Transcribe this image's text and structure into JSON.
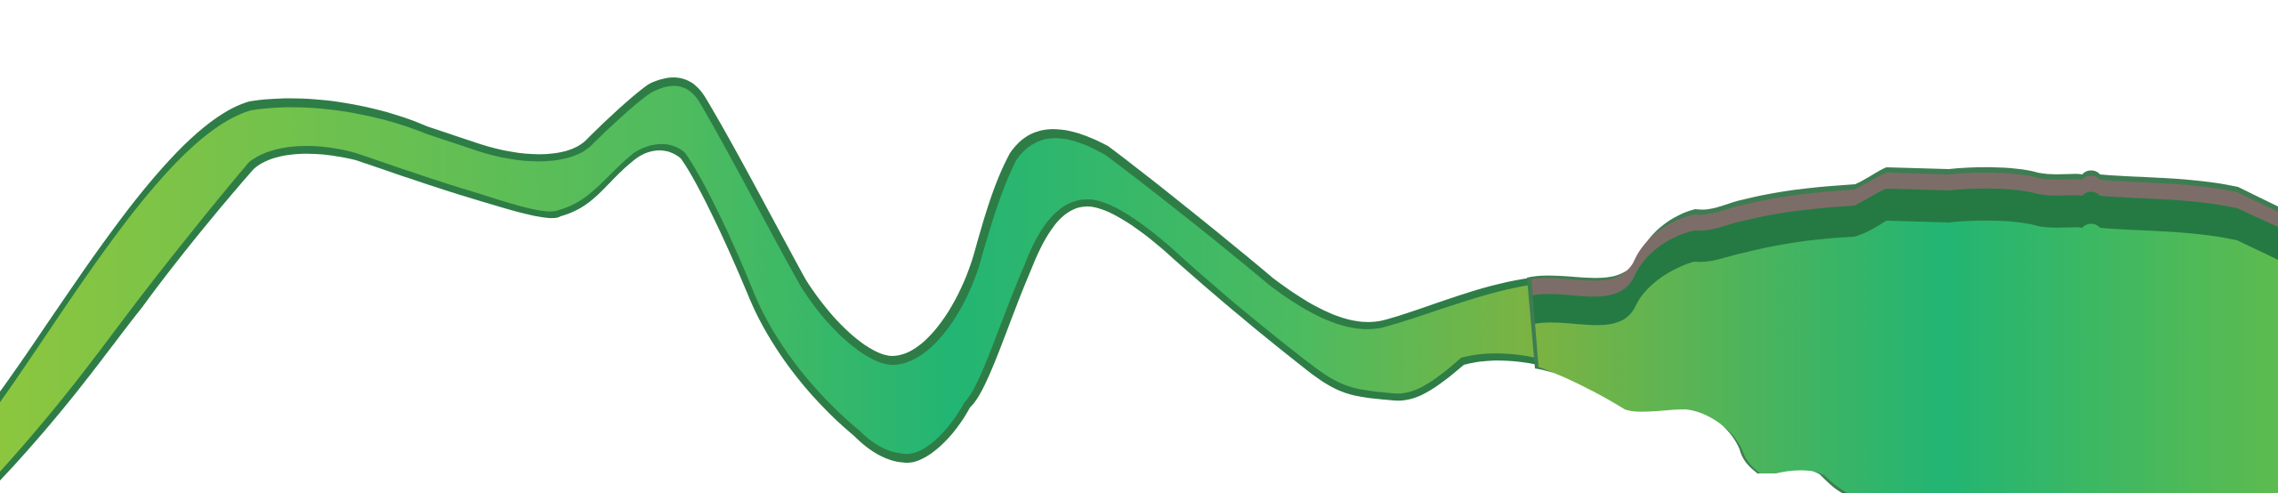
{
  "scene": {
    "description_text": "",
    "colors": {
      "background": "#ffffff",
      "green_light": "#8cc63f",
      "green_mid": "#4dbb5f",
      "green_teal": "#22b573",
      "green_olive": "#7cb342",
      "outline_dark": "#2e7d46",
      "band_dark_green": "#257a43",
      "band_mauve": "#7d6d68"
    }
  }
}
